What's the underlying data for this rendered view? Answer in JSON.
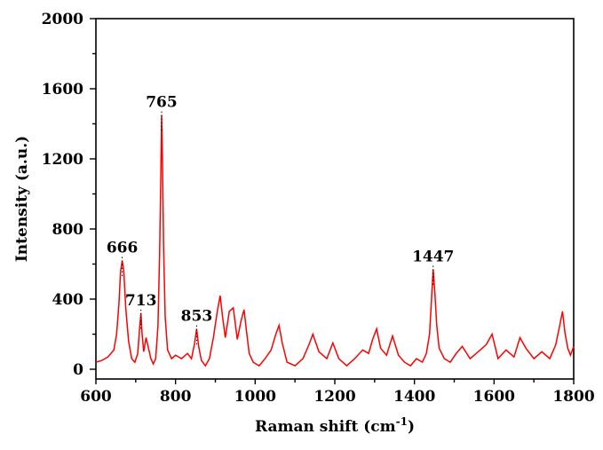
{
  "chart_data": {
    "type": "line",
    "xlabel": "Raman shift (cm",
    "xlabel_sup": "-1",
    "xlabel_close": ")",
    "ylabel": "Intensity (a.u.)",
    "xlim": [
      600,
      1800
    ],
    "ylim": [
      0,
      2000
    ],
    "x_ticks": [
      "600",
      "800",
      "1000",
      "1200",
      "1400",
      "1600",
      "1800"
    ],
    "y_ticks": [
      "0",
      "400",
      "800",
      "1200",
      "1600",
      "2000"
    ],
    "grid": false,
    "series_color": "#ff0000",
    "series": [
      {
        "x": [
          600,
          615,
          630,
          645,
          652,
          658,
          662,
          666,
          670,
          675,
          682,
          690,
          698,
          705,
          710,
          713,
          716,
          720,
          726,
          732,
          738,
          744,
          750,
          756,
          760,
          763,
          765,
          767,
          770,
          774,
          780,
          790,
          800,
          815,
          830,
          840,
          848,
          853,
          858,
          865,
          875,
          885,
          895,
          905,
          912,
          918,
          925,
          935,
          945,
          955,
          965,
          972,
          978,
          985,
          995,
          1010,
          1025,
          1040,
          1052,
          1060,
          1068,
          1080,
          1100,
          1120,
          1135,
          1145,
          1160,
          1180,
          1195,
          1210,
          1230,
          1250,
          1270,
          1285,
          1295,
          1305,
          1315,
          1330,
          1345,
          1360,
          1375,
          1390,
          1405,
          1420,
          1430,
          1438,
          1443,
          1447,
          1451,
          1456,
          1462,
          1475,
          1490,
          1505,
          1520,
          1540,
          1560,
          1580,
          1595,
          1610,
          1630,
          1650,
          1665,
          1680,
          1700,
          1720,
          1740,
          1755,
          1765,
          1772,
          1778,
          1785,
          1792,
          1800
        ],
        "y": [
          40,
          50,
          70,
          110,
          200,
          380,
          560,
          620,
          560,
          350,
          160,
          60,
          40,
          90,
          240,
          320,
          200,
          100,
          180,
          120,
          60,
          30,
          60,
          250,
          650,
          1100,
          1450,
          1200,
          700,
          300,
          110,
          60,
          80,
          60,
          90,
          60,
          150,
          230,
          130,
          50,
          20,
          60,
          180,
          330,
          420,
          300,
          180,
          330,
          350,
          170,
          280,
          340,
          220,
          90,
          40,
          20,
          60,
          110,
          200,
          250,
          150,
          40,
          20,
          60,
          140,
          200,
          100,
          60,
          150,
          60,
          20,
          60,
          110,
          90,
          170,
          230,
          120,
          80,
          190,
          80,
          40,
          20,
          60,
          40,
          90,
          200,
          400,
          570,
          450,
          250,
          120,
          60,
          40,
          90,
          130,
          60,
          100,
          140,
          200,
          60,
          110,
          70,
          180,
          120,
          60,
          100,
          60,
          140,
          250,
          330,
          210,
          120,
          80,
          130
        ]
      }
    ],
    "annotations": [
      {
        "text": "666",
        "x": 666,
        "y": 620
      },
      {
        "text": "713",
        "x": 713,
        "y": 320
      },
      {
        "text": "765",
        "x": 765,
        "y": 1450
      },
      {
        "text": "853",
        "x": 853,
        "y": 230
      },
      {
        "text": "1447",
        "x": 1447,
        "y": 570
      }
    ]
  }
}
